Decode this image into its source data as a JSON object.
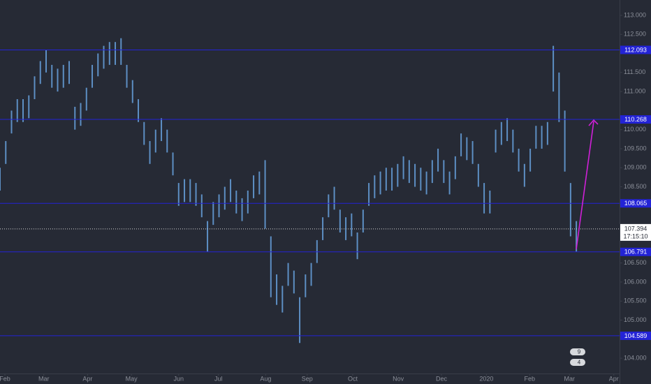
{
  "chart_data": {
    "type": "range-bar",
    "x": [
      0,
      1,
      2,
      3,
      4,
      5,
      6,
      7,
      8,
      9,
      10,
      11,
      12,
      13,
      14,
      15,
      16,
      17,
      18,
      19,
      20,
      21,
      22,
      23,
      24,
      25,
      26,
      27,
      28,
      29,
      30,
      31,
      32,
      33,
      34,
      35,
      36,
      37,
      38,
      39,
      40,
      41,
      42,
      43,
      44,
      45,
      46,
      47,
      48,
      49,
      50,
      51,
      52,
      53,
      54,
      55,
      56,
      57,
      58,
      59,
      60,
      61,
      62,
      63,
      64,
      65,
      66,
      67,
      68,
      69,
      70,
      71,
      72,
      73,
      74,
      75,
      76,
      77,
      78,
      79,
      80,
      81,
      82,
      83,
      84,
      85,
      86,
      87,
      88,
      89,
      90,
      91,
      92,
      93,
      94,
      95,
      96,
      97,
      98,
      99,
      100
    ],
    "high": [
      109.0,
      109.7,
      110.5,
      110.8,
      110.8,
      110.9,
      111.4,
      111.8,
      112.1,
      111.7,
      111.6,
      111.7,
      111.8,
      110.6,
      110.7,
      111.1,
      111.7,
      112.0,
      112.2,
      112.3,
      112.3,
      112.4,
      111.7,
      111.3,
      110.8,
      110.2,
      109.7,
      110.0,
      110.3,
      110.0,
      109.4,
      108.6,
      108.7,
      108.7,
      108.6,
      108.3,
      107.6,
      108.1,
      108.3,
      108.5,
      108.7,
      108.4,
      108.2,
      108.4,
      108.8,
      108.9,
      109.2,
      107.2,
      106.2,
      105.9,
      106.5,
      106.3,
      105.6,
      106.2,
      106.5,
      107.1,
      107.7,
      108.3,
      108.5,
      107.9,
      107.7,
      107.8,
      107.3,
      107.9,
      108.6,
      108.8,
      108.9,
      109.0,
      109.0,
      109.1,
      109.3,
      109.2,
      109.1,
      109.0,
      108.9,
      109.2,
      109.5,
      109.2,
      108.9,
      109.3,
      109.9,
      109.8,
      109.7,
      109.1,
      108.6,
      108.4,
      110.0,
      110.2,
      110.3,
      110.0,
      109.5,
      109.1,
      109.5,
      110.1,
      110.1,
      110.2,
      112.2,
      111.5,
      110.5,
      108.6,
      107.6
    ],
    "low": [
      108.4,
      109.1,
      109.9,
      110.2,
      110.2,
      110.3,
      110.8,
      111.2,
      111.5,
      111.1,
      111.0,
      111.1,
      111.2,
      110.0,
      110.1,
      110.5,
      111.1,
      111.4,
      111.6,
      111.7,
      111.7,
      111.7,
      111.1,
      110.7,
      110.2,
      109.6,
      109.1,
      109.4,
      109.7,
      109.4,
      108.8,
      108.0,
      108.1,
      108.1,
      108.0,
      107.7,
      106.8,
      107.5,
      107.7,
      107.9,
      108.1,
      107.8,
      107.6,
      107.8,
      108.2,
      108.3,
      107.4,
      105.6,
      105.4,
      105.2,
      105.9,
      105.7,
      104.4,
      105.6,
      105.9,
      106.5,
      107.1,
      107.7,
      107.9,
      107.3,
      107.1,
      107.2,
      106.6,
      107.3,
      108.0,
      108.2,
      108.3,
      108.4,
      108.4,
      108.5,
      108.7,
      108.6,
      108.5,
      108.4,
      108.3,
      108.6,
      108.9,
      108.6,
      108.3,
      108.7,
      109.3,
      109.2,
      109.1,
      108.5,
      107.8,
      107.8,
      109.4,
      109.6,
      109.7,
      109.4,
      108.9,
      108.5,
      108.9,
      109.5,
      109.5,
      109.6,
      111.0,
      110.2,
      108.9,
      107.2,
      106.8
    ],
    "color": "#5d8fc4",
    "xlim": [
      0,
      107.5
    ],
    "xticks": [
      {
        "value": 0.85,
        "label": "Feb"
      },
      {
        "value": 7.6,
        "label": "Mar"
      },
      {
        "value": 15.2,
        "label": "Apr"
      },
      {
        "value": 22.8,
        "label": "May"
      },
      {
        "value": 31,
        "label": "Jun"
      },
      {
        "value": 37.9,
        "label": "Jul"
      },
      {
        "value": 46.1,
        "label": "Aug"
      },
      {
        "value": 53.3,
        "label": "Sep"
      },
      {
        "value": 61.2,
        "label": "Oct"
      },
      {
        "value": 69.1,
        "label": "Nov"
      },
      {
        "value": 76.6,
        "label": "Dec"
      },
      {
        "value": 84.4,
        "label": "2020"
      },
      {
        "value": 91.9,
        "label": "Feb"
      },
      {
        "value": 98.8,
        "label": "Mar"
      },
      {
        "value": 106.5,
        "label": "Apr"
      }
    ],
    "ylim": [
      103.598,
      113.403
    ],
    "yticks": [
      {
        "value": 113,
        "label": "113.000"
      },
      {
        "value": 112.5,
        "label": "112.500"
      },
      {
        "value": 111.5,
        "label": "111.500"
      },
      {
        "value": 111,
        "label": "111.000"
      },
      {
        "value": 110,
        "label": "110.000"
      },
      {
        "value": 109.5,
        "label": "109.500"
      },
      {
        "value": 109,
        "label": "109.000"
      },
      {
        "value": 108.5,
        "label": "108.500"
      },
      {
        "value": 106.5,
        "label": "106.500"
      },
      {
        "value": 106,
        "label": "106.000"
      },
      {
        "value": 105.5,
        "label": "105.500"
      },
      {
        "value": 105,
        "label": "105.000"
      },
      {
        "value": 104,
        "label": "104.000"
      }
    ],
    "levels": [
      112.093,
      110.268,
      108.065,
      106.791,
      104.589
    ],
    "level_color": "#2323d6",
    "current_price": 107.394,
    "countdown": "17:15:10",
    "badges": [
      "9",
      "4"
    ]
  }
}
